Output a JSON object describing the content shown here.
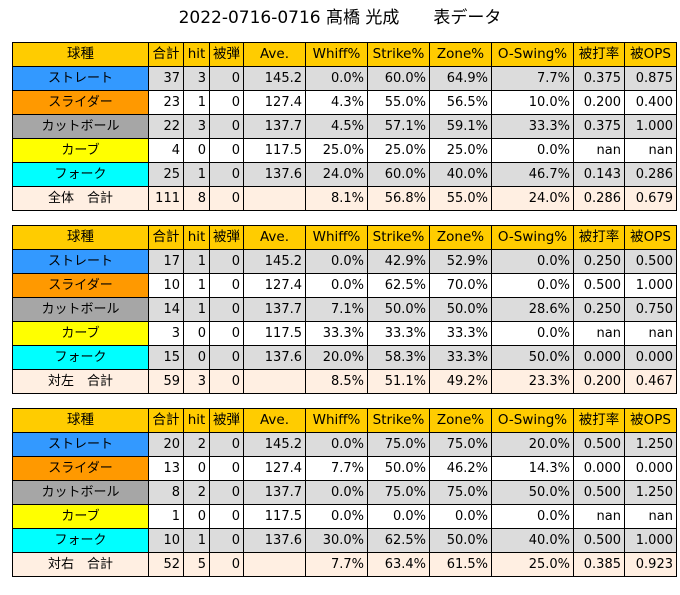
{
  "title": "2022-0716-0716 髙橋 光成　　表データ",
  "colors": {
    "header": "#ffcc00",
    "straight": "#3399ff",
    "slider": "#ff9900",
    "cutter": "#a6a6a6",
    "curve": "#ffff00",
    "fork": "#00ffff",
    "total": "#ffefe2",
    "shaded_row": "#dcdcdc"
  },
  "tables": [
    {
      "headers": [
        "球種",
        "合計",
        "hit",
        "被弾",
        "Ave.",
        "Whiff%",
        "Strike%",
        "Zone%",
        "O-Swing%",
        "被打率",
        "被OPS"
      ],
      "rows": [
        {
          "pitch": "ストレート",
          "cells": [
            "37",
            "3",
            "0",
            "145.2",
            "0.0%",
            "60.0%",
            "64.9%",
            "7.7%",
            "0.375",
            "0.875"
          ]
        },
        {
          "pitch": "スライダー",
          "cells": [
            "23",
            "1",
            "0",
            "127.4",
            "4.3%",
            "55.0%",
            "56.5%",
            "10.0%",
            "0.200",
            "0.400"
          ]
        },
        {
          "pitch": "カットボール",
          "cells": [
            "22",
            "3",
            "0",
            "137.7",
            "4.5%",
            "57.1%",
            "59.1%",
            "33.3%",
            "0.375",
            "1.000"
          ]
        },
        {
          "pitch": "カーブ",
          "cells": [
            "4",
            "0",
            "0",
            "117.5",
            "25.0%",
            "25.0%",
            "25.0%",
            "0.0%",
            "nan",
            "nan"
          ]
        },
        {
          "pitch": "フォーク",
          "cells": [
            "25",
            "1",
            "0",
            "137.6",
            "24.0%",
            "60.0%",
            "40.0%",
            "46.7%",
            "0.143",
            "0.286"
          ]
        }
      ],
      "total": {
        "label": "全体　合計",
        "cells": [
          "111",
          "8",
          "0",
          "",
          "8.1%",
          "56.8%",
          "55.0%",
          "24.0%",
          "0.286",
          "0.679"
        ]
      }
    },
    {
      "headers": [
        "球種",
        "合計",
        "hit",
        "被弾",
        "Ave.",
        "Whiff%",
        "Strike%",
        "Zone%",
        "O-Swing%",
        "被打率",
        "被OPS"
      ],
      "rows": [
        {
          "pitch": "ストレート",
          "cells": [
            "17",
            "1",
            "0",
            "145.2",
            "0.0%",
            "42.9%",
            "52.9%",
            "0.0%",
            "0.250",
            "0.500"
          ]
        },
        {
          "pitch": "スライダー",
          "cells": [
            "10",
            "1",
            "0",
            "127.4",
            "0.0%",
            "62.5%",
            "70.0%",
            "0.0%",
            "0.500",
            "1.000"
          ]
        },
        {
          "pitch": "カットボール",
          "cells": [
            "14",
            "1",
            "0",
            "137.7",
            "7.1%",
            "50.0%",
            "50.0%",
            "28.6%",
            "0.250",
            "0.750"
          ]
        },
        {
          "pitch": "カーブ",
          "cells": [
            "3",
            "0",
            "0",
            "117.5",
            "33.3%",
            "33.3%",
            "33.3%",
            "0.0%",
            "nan",
            "nan"
          ]
        },
        {
          "pitch": "フォーク",
          "cells": [
            "15",
            "0",
            "0",
            "137.6",
            "20.0%",
            "58.3%",
            "33.3%",
            "50.0%",
            "0.000",
            "0.000"
          ]
        }
      ],
      "total": {
        "label": "対左　合計",
        "cells": [
          "59",
          "3",
          "0",
          "",
          "8.5%",
          "51.1%",
          "49.2%",
          "23.3%",
          "0.200",
          "0.467"
        ]
      }
    },
    {
      "headers": [
        "球種",
        "合計",
        "hit",
        "被弾",
        "Ave.",
        "Whiff%",
        "Strike%",
        "Zone%",
        "O-Swing%",
        "被打率",
        "被OPS"
      ],
      "rows": [
        {
          "pitch": "ストレート",
          "cells": [
            "20",
            "2",
            "0",
            "145.2",
            "0.0%",
            "75.0%",
            "75.0%",
            "20.0%",
            "0.500",
            "1.250"
          ]
        },
        {
          "pitch": "スライダー",
          "cells": [
            "13",
            "0",
            "0",
            "127.4",
            "7.7%",
            "50.0%",
            "46.2%",
            "14.3%",
            "0.000",
            "0.000"
          ]
        },
        {
          "pitch": "カットボール",
          "cells": [
            "8",
            "2",
            "0",
            "137.7",
            "0.0%",
            "75.0%",
            "75.0%",
            "50.0%",
            "0.500",
            "1.250"
          ]
        },
        {
          "pitch": "カーブ",
          "cells": [
            "1",
            "0",
            "0",
            "117.5",
            "0.0%",
            "0.0%",
            "0.0%",
            "0.0%",
            "nan",
            "nan"
          ]
        },
        {
          "pitch": "フォーク",
          "cells": [
            "10",
            "1",
            "0",
            "137.6",
            "30.0%",
            "62.5%",
            "50.0%",
            "40.0%",
            "0.500",
            "1.000"
          ]
        }
      ],
      "total": {
        "label": "対右　合計",
        "cells": [
          "52",
          "5",
          "0",
          "",
          "7.7%",
          "63.4%",
          "61.5%",
          "25.0%",
          "0.385",
          "0.923"
        ]
      }
    }
  ]
}
